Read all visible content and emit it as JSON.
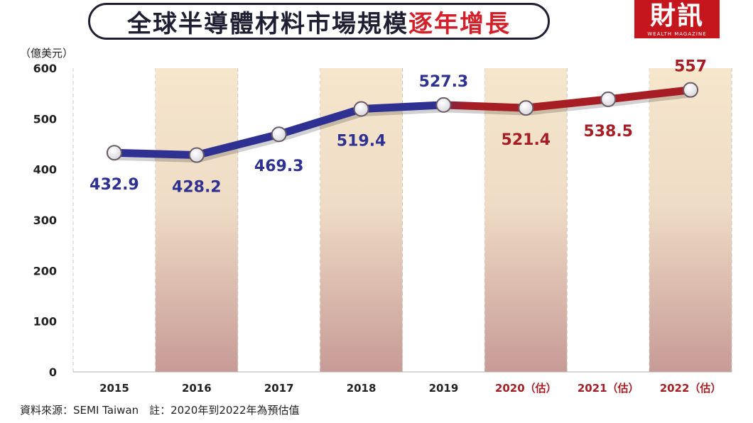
{
  "header": {
    "title_main": "全球半導體材料市場規模",
    "title_accent": "逐年增長",
    "logo_text": "財訊",
    "logo_sub": "WEALTH MAGAZINE"
  },
  "unit_label": "（億美元）",
  "footnote": "資料來源：SEMI Taiwan　註：2020年到2022年為預估值",
  "colors": {
    "actual": "#2e3192",
    "estimate": "#a61d24",
    "band": "#f3e3c9",
    "band_bottom": "#c99a95"
  },
  "chart_data": {
    "type": "line",
    "title": "全球半導體材料市場規模逐年增長",
    "ylabel": "（億美元）",
    "ylim": [
      0,
      600
    ],
    "yticks": [
      0,
      100,
      200,
      300,
      400,
      500,
      600
    ],
    "categories": [
      "2015",
      "2016",
      "2017",
      "2018",
      "2019",
      "2020（估）",
      "2021（估）",
      "2022（估）"
    ],
    "values": [
      432.9,
      428.2,
      469.3,
      519.4,
      527.3,
      521.4,
      538.5,
      557
    ],
    "labels": [
      "432.9",
      "428.2",
      "469.3",
      "519.4",
      "527.3",
      "521.4",
      "538.5",
      "557"
    ],
    "estimate_from_index": 5,
    "grid": false
  }
}
